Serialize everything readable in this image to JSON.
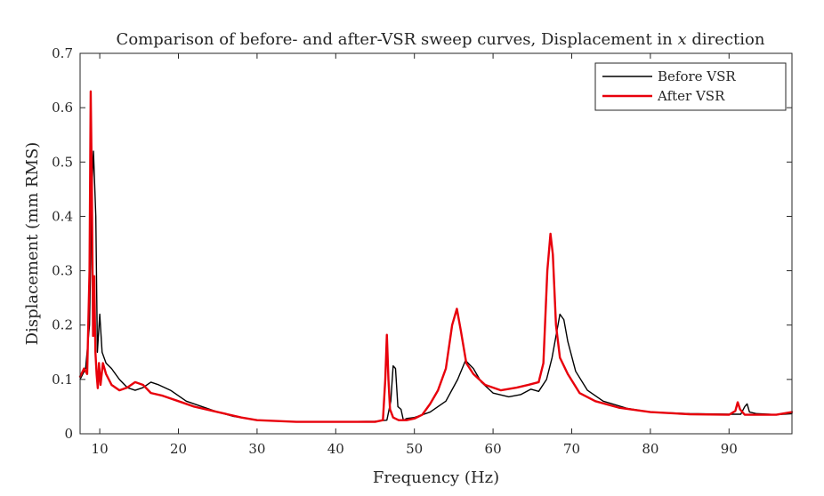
{
  "chart_data": {
    "type": "line",
    "title": "Comparison of before- and after-VSR sweep curves, Displacement in",
    "title_math": "x",
    "title_suffix": "direction",
    "xlabel": "Frequency (Hz)",
    "ylabel": "Displacement (mm RMS)",
    "xlim": [
      7.5,
      98
    ],
    "ylim": [
      0,
      0.7
    ],
    "x_ticks": [
      10,
      20,
      30,
      40,
      50,
      60,
      70,
      80,
      90
    ],
    "x_tick_labels": [
      "10",
      "20",
      "30",
      "40",
      "50",
      "60",
      "70",
      "80",
      "90"
    ],
    "y_ticks": [
      0,
      0.1,
      0.2,
      0.3,
      0.4,
      0.5,
      0.6,
      0.7
    ],
    "y_tick_labels": [
      "0",
      "0.1",
      "0.2",
      "0.3",
      "0.4",
      "0.5",
      "0.6",
      "0.7"
    ],
    "grid": false,
    "legend_position": "top-right",
    "series": [
      {
        "name": "Before VSR",
        "color": "#000000",
        "points": [
          [
            7.5,
            0.1
          ],
          [
            8.2,
            0.12
          ],
          [
            8.7,
            0.2
          ],
          [
            9.0,
            0.45
          ],
          [
            9.2,
            0.52
          ],
          [
            9.5,
            0.4
          ],
          [
            9.7,
            0.15
          ],
          [
            10.0,
            0.22
          ],
          [
            10.3,
            0.15
          ],
          [
            10.8,
            0.13
          ],
          [
            11.5,
            0.12
          ],
          [
            12.5,
            0.1
          ],
          [
            13.5,
            0.085
          ],
          [
            14.5,
            0.08
          ],
          [
            15.5,
            0.085
          ],
          [
            16.5,
            0.095
          ],
          [
            17.5,
            0.09
          ],
          [
            19,
            0.08
          ],
          [
            21,
            0.06
          ],
          [
            23,
            0.05
          ],
          [
            25,
            0.04
          ],
          [
            27,
            0.032
          ],
          [
            30,
            0.025
          ],
          [
            35,
            0.022
          ],
          [
            40,
            0.022
          ],
          [
            45,
            0.023
          ],
          [
            46.5,
            0.025
          ],
          [
            47.0,
            0.06
          ],
          [
            47.3,
            0.125
          ],
          [
            47.6,
            0.12
          ],
          [
            47.9,
            0.05
          ],
          [
            48.3,
            0.045
          ],
          [
            48.6,
            0.025
          ],
          [
            49,
            0.028
          ],
          [
            50,
            0.03
          ],
          [
            52,
            0.04
          ],
          [
            54,
            0.06
          ],
          [
            55.5,
            0.1
          ],
          [
            56.5,
            0.135
          ],
          [
            57.5,
            0.12
          ],
          [
            58.5,
            0.095
          ],
          [
            60,
            0.075
          ],
          [
            62,
            0.068
          ],
          [
            63.5,
            0.072
          ],
          [
            64.8,
            0.082
          ],
          [
            65.8,
            0.078
          ],
          [
            66.8,
            0.1
          ],
          [
            67.5,
            0.14
          ],
          [
            68.0,
            0.18
          ],
          [
            68.5,
            0.22
          ],
          [
            69.0,
            0.21
          ],
          [
            69.5,
            0.17
          ],
          [
            70.5,
            0.115
          ],
          [
            72,
            0.08
          ],
          [
            74,
            0.06
          ],
          [
            77,
            0.047
          ],
          [
            80,
            0.04
          ],
          [
            85,
            0.037
          ],
          [
            90,
            0.036
          ],
          [
            91.5,
            0.036
          ],
          [
            92.0,
            0.05
          ],
          [
            92.3,
            0.055
          ],
          [
            92.6,
            0.04
          ],
          [
            93.5,
            0.037
          ],
          [
            95,
            0.036
          ],
          [
            96,
            0.035
          ],
          [
            98,
            0.037
          ]
        ]
      },
      {
        "name": "After VSR",
        "color": "#e8000b",
        "points": [
          [
            7.5,
            0.105
          ],
          [
            8.0,
            0.12
          ],
          [
            8.4,
            0.11
          ],
          [
            8.7,
            0.3
          ],
          [
            8.85,
            0.63
          ],
          [
            9.0,
            0.45
          ],
          [
            9.15,
            0.18
          ],
          [
            9.3,
            0.29
          ],
          [
            9.45,
            0.15
          ],
          [
            9.6,
            0.11
          ],
          [
            9.75,
            0.084
          ],
          [
            9.9,
            0.13
          ],
          [
            10.1,
            0.09
          ],
          [
            10.4,
            0.13
          ],
          [
            10.8,
            0.11
          ],
          [
            11.5,
            0.09
          ],
          [
            12.5,
            0.08
          ],
          [
            13.5,
            0.085
          ],
          [
            14.5,
            0.095
          ],
          [
            15.5,
            0.09
          ],
          [
            16.5,
            0.075
          ],
          [
            18,
            0.07
          ],
          [
            20,
            0.06
          ],
          [
            22,
            0.05
          ],
          [
            25,
            0.04
          ],
          [
            28,
            0.03
          ],
          [
            30,
            0.025
          ],
          [
            35,
            0.022
          ],
          [
            40,
            0.022
          ],
          [
            45,
            0.022
          ],
          [
            46.0,
            0.025
          ],
          [
            46.3,
            0.1
          ],
          [
            46.5,
            0.182
          ],
          [
            46.7,
            0.1
          ],
          [
            46.9,
            0.045
          ],
          [
            47.3,
            0.03
          ],
          [
            48,
            0.025
          ],
          [
            49,
            0.025
          ],
          [
            50,
            0.028
          ],
          [
            51,
            0.035
          ],
          [
            52,
            0.055
          ],
          [
            53,
            0.08
          ],
          [
            54,
            0.12
          ],
          [
            54.8,
            0.2
          ],
          [
            55.4,
            0.23
          ],
          [
            55.9,
            0.19
          ],
          [
            56.6,
            0.13
          ],
          [
            57.5,
            0.11
          ],
          [
            59,
            0.09
          ],
          [
            61,
            0.08
          ],
          [
            63,
            0.085
          ],
          [
            64.5,
            0.09
          ],
          [
            65.8,
            0.095
          ],
          [
            66.4,
            0.13
          ],
          [
            66.9,
            0.3
          ],
          [
            67.3,
            0.368
          ],
          [
            67.6,
            0.33
          ],
          [
            68.0,
            0.2
          ],
          [
            68.5,
            0.14
          ],
          [
            69.5,
            0.11
          ],
          [
            71,
            0.075
          ],
          [
            73,
            0.06
          ],
          [
            76,
            0.048
          ],
          [
            80,
            0.04
          ],
          [
            85,
            0.036
          ],
          [
            90,
            0.035
          ],
          [
            90.8,
            0.042
          ],
          [
            91.1,
            0.058
          ],
          [
            91.4,
            0.045
          ],
          [
            92.0,
            0.035
          ],
          [
            94,
            0.035
          ],
          [
            96,
            0.035
          ],
          [
            98,
            0.04
          ]
        ]
      }
    ]
  }
}
